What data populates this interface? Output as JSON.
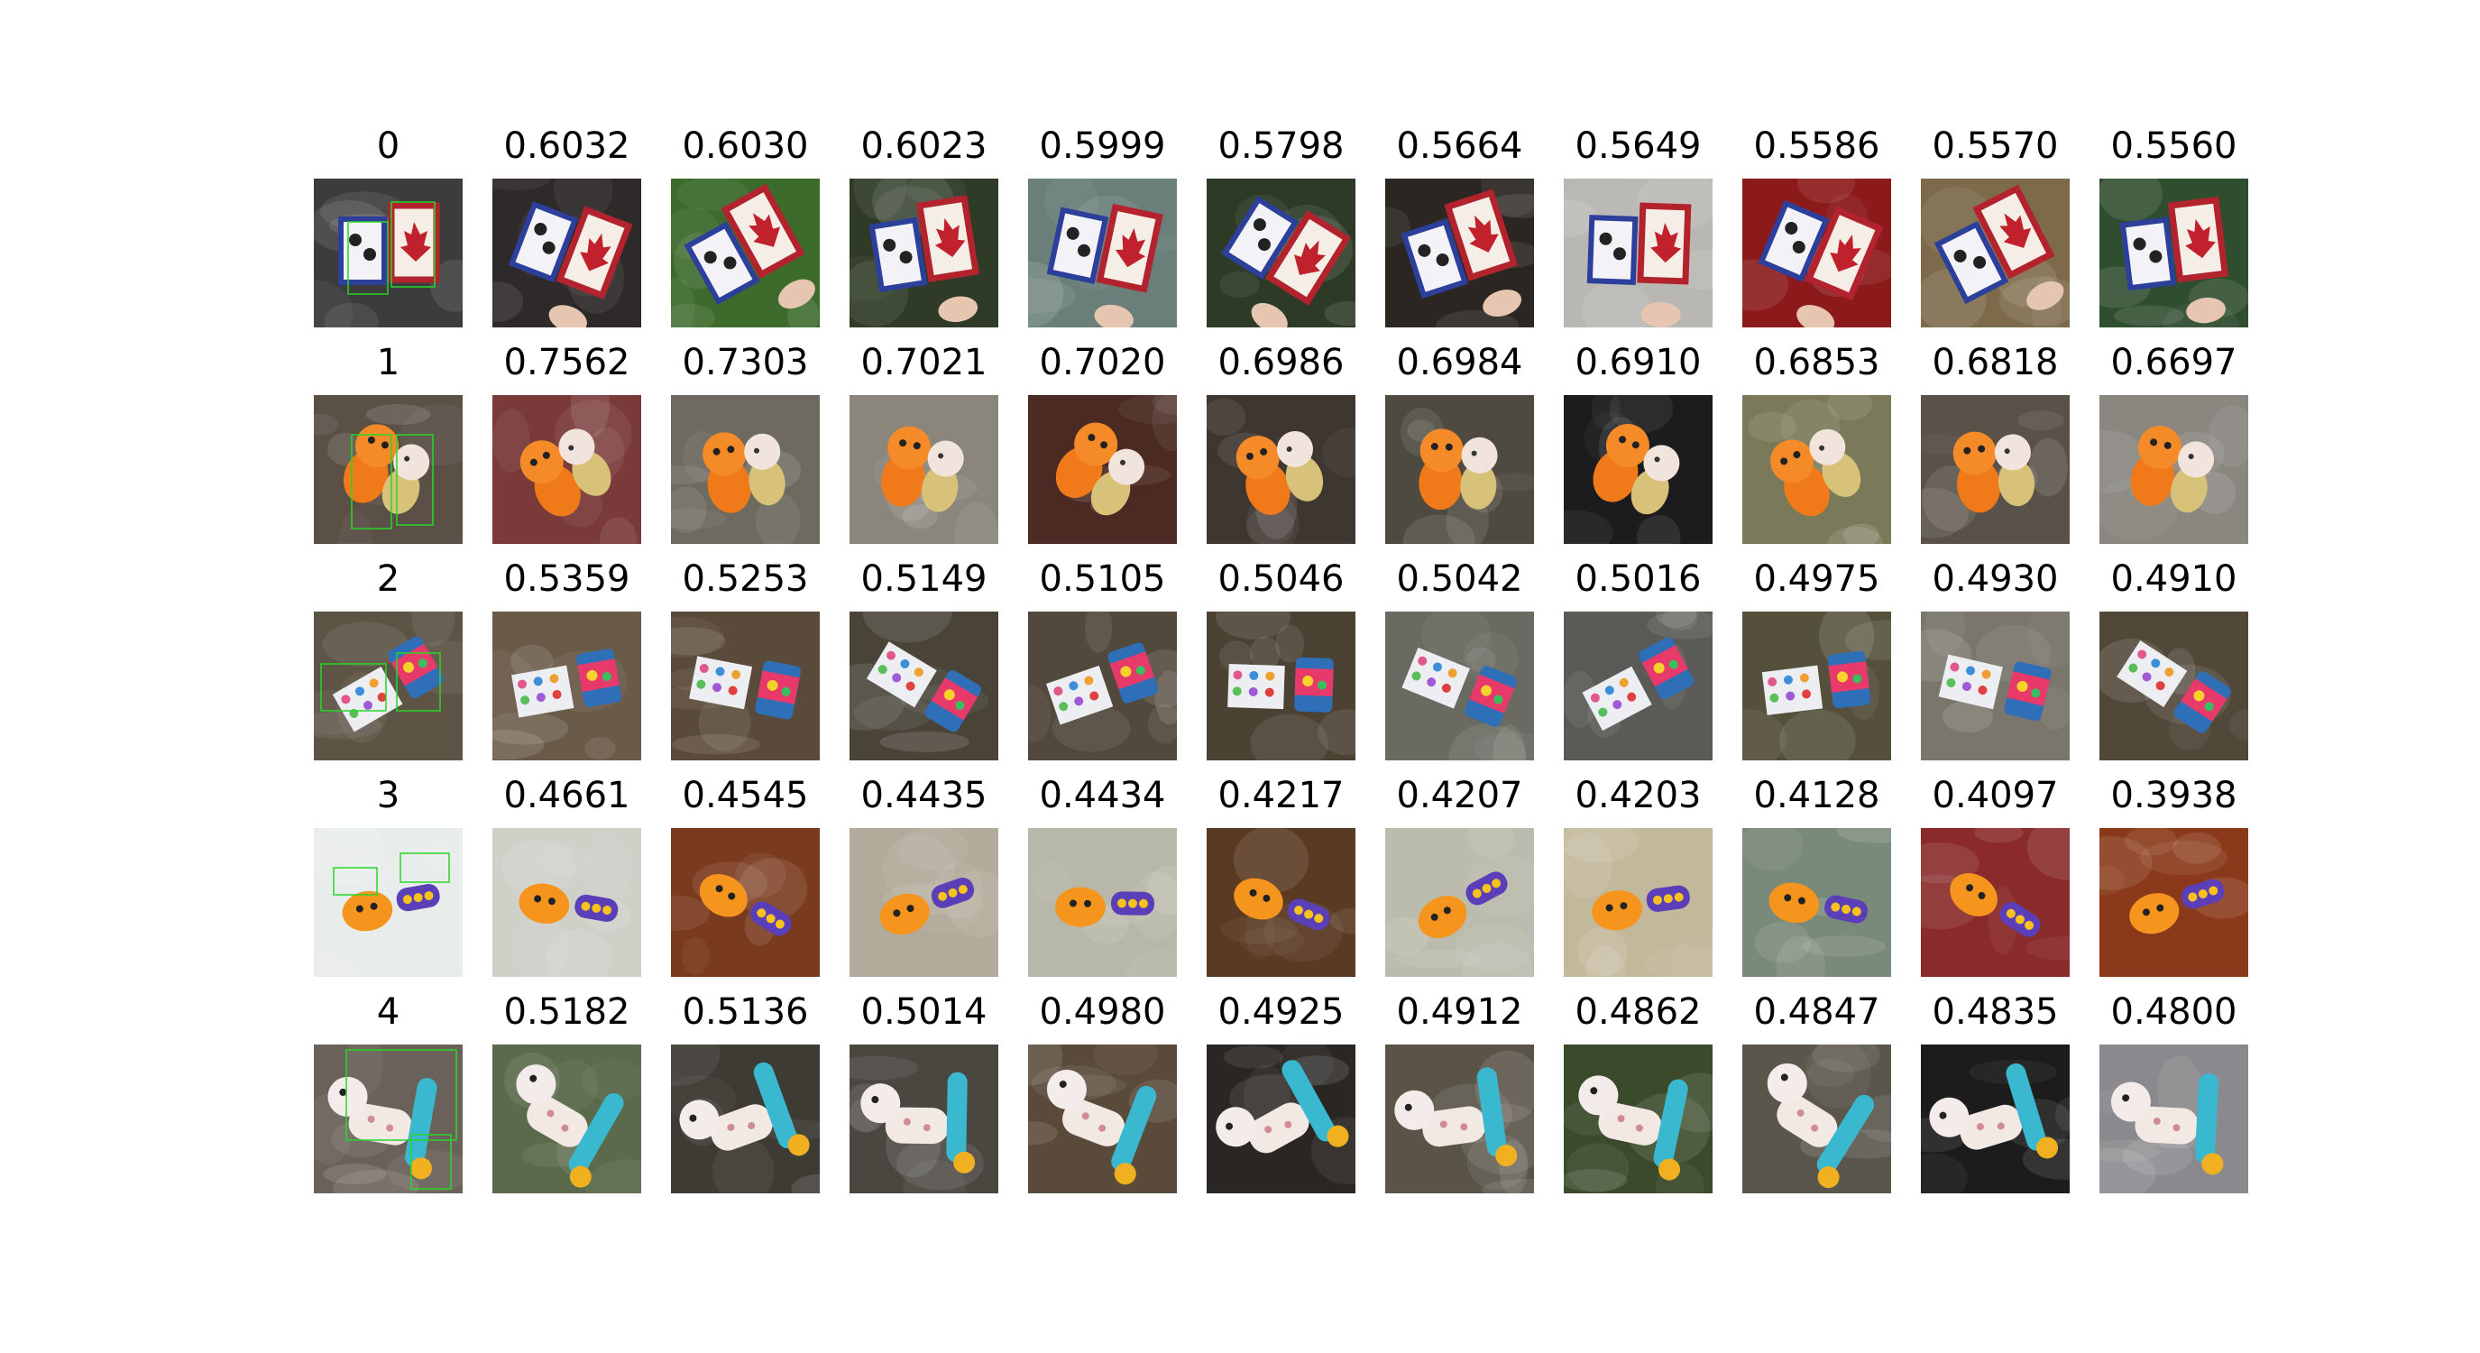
{
  "rows": [
    {
      "query": "0",
      "scores": [
        "0.6032",
        "0.6030",
        "0.6023",
        "0.5999",
        "0.5798",
        "0.5664",
        "0.5649",
        "0.5586",
        "0.5570",
        "0.5560"
      ],
      "subject": "flag-cards",
      "bg": [
        "#3c3c3c",
        "#2f2a2a",
        "#3d6b2c",
        "#2f3b27",
        "#6a7f7a",
        "#2d3b26",
        "#2b2622",
        "#b9b7b2",
        "#8c1a1a",
        "#7d6a4b",
        "#2f4d2f"
      ]
    },
    {
      "query": "1",
      "scores": [
        "0.7562",
        "0.7303",
        "0.7021",
        "0.7020",
        "0.6986",
        "0.6984",
        "0.6910",
        "0.6853",
        "0.6818",
        "0.6697"
      ],
      "subject": "figurines",
      "bg": [
        "#5a5046",
        "#7a3a3a",
        "#6e6a60",
        "#8a867c",
        "#4a2a22",
        "#3e3630",
        "#4e4a40",
        "#1c1c1e",
        "#7a7a5a",
        "#5a5248",
        "#8a8680"
      ]
    },
    {
      "query": "2",
      "scores": [
        "0.5359",
        "0.5253",
        "0.5149",
        "0.5105",
        "0.5046",
        "0.5042",
        "0.5016",
        "0.4975",
        "0.4930",
        "0.4910"
      ],
      "subject": "book-and-can",
      "bg": [
        "#5e5446",
        "#6a5a48",
        "#5a4a3a",
        "#4a4438",
        "#52483c",
        "#4c4234",
        "#6a6a62",
        "#5a5a56",
        "#54503c",
        "#7a766c",
        "#52483a"
      ]
    },
    {
      "query": "3",
      "scores": [
        "0.4661",
        "0.4545",
        "0.4435",
        "0.4434",
        "0.4217",
        "0.4207",
        "0.4203",
        "0.4128",
        "0.4097",
        "0.3938"
      ],
      "subject": "orange-toy-remote",
      "bg": [
        "#e8ecea",
        "#cfd0c8",
        "#7a3a1e",
        "#b2aa9a",
        "#b8b8a8",
        "#5a3a22",
        "#bcbcae",
        "#c2b89a",
        "#7a8a7a",
        "#8a2a2a",
        "#8a3a1a"
      ]
    },
    {
      "query": "4",
      "scores": [
        "0.5182",
        "0.5136",
        "0.5014",
        "0.4980",
        "0.4925",
        "0.4912",
        "0.4862",
        "0.4847",
        "0.4835",
        "0.4800"
      ],
      "subject": "giraffe-figure-ring",
      "bg": [
        "#6a625a",
        "#5a6a4a",
        "#3e3a34",
        "#4a4640",
        "#5a4a3a",
        "#2a2624",
        "#5a5448",
        "#3a4a2a",
        "#5a564c",
        "#1c1c1c",
        "#8a8a8e"
      ]
    }
  ]
}
